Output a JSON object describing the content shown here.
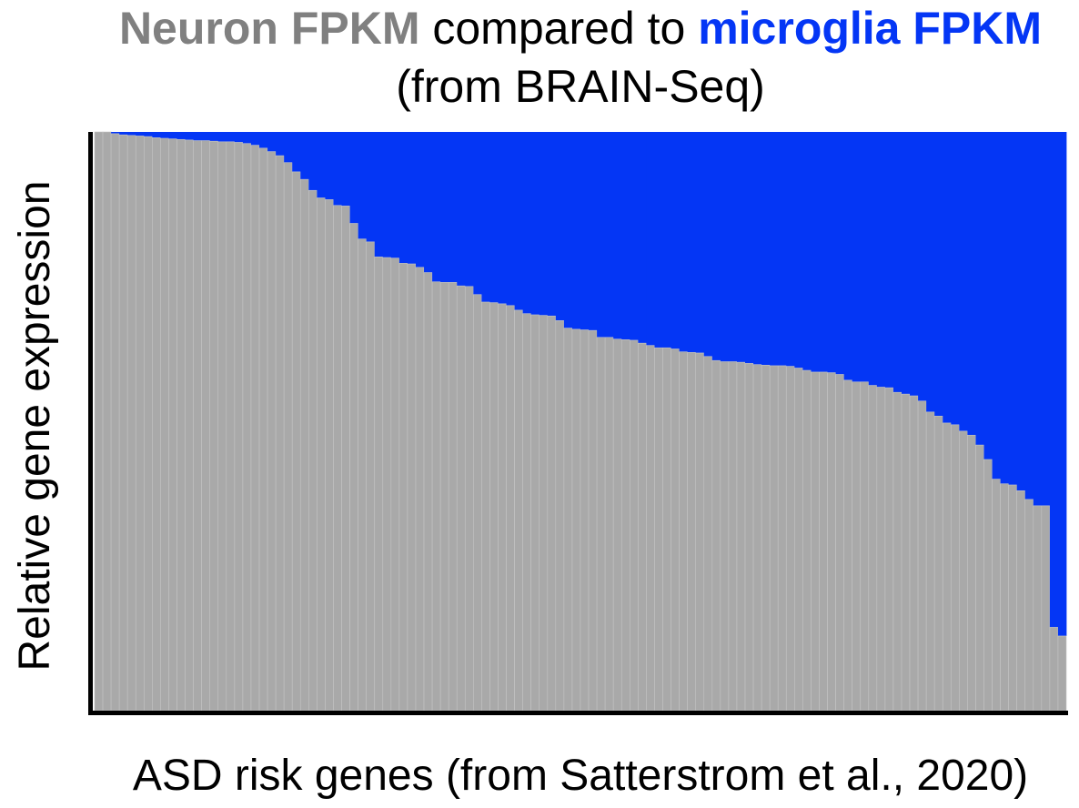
{
  "chart_data": {
    "type": "bar",
    "stacked": true,
    "normalized": true,
    "title": {
      "part1": "Neuron FPKM",
      "part2": " compared to ",
      "part3": "microglia FPKM",
      "line2": "(from BRAIN-Seq)"
    },
    "xlabel": "ASD risk genes (from Satterstrom et al., 2020)",
    "ylabel": "Relative gene expression",
    "ylim": [
      0,
      1
    ],
    "grid": false,
    "legend": "none",
    "colors": {
      "neuron": "#a9a9a9",
      "microglia": "#0436f5",
      "title_neuron": "#808080",
      "title_microglia": "#0436f5",
      "axis": "#000000"
    },
    "series": [
      {
        "key": "neuron",
        "values": [
          1.0,
          1.0,
          0.997,
          0.995,
          0.994,
          0.993,
          0.992,
          0.99,
          0.989,
          0.988,
          0.987,
          0.986,
          0.985,
          0.985,
          0.984,
          0.983,
          0.983,
          0.982,
          0.98,
          0.977,
          0.972,
          0.966,
          0.959,
          0.947,
          0.931,
          0.918,
          0.899,
          0.886,
          0.883,
          0.873,
          0.872,
          0.842,
          0.815,
          0.81,
          0.784,
          0.783,
          0.782,
          0.773,
          0.772,
          0.766,
          0.757,
          0.741,
          0.74,
          0.74,
          0.734,
          0.733,
          0.719,
          0.706,
          0.705,
          0.703,
          0.7,
          0.692,
          0.686,
          0.684,
          0.683,
          0.682,
          0.674,
          0.661,
          0.659,
          0.658,
          0.657,
          0.645,
          0.645,
          0.642,
          0.641,
          0.64,
          0.635,
          0.631,
          0.627,
          0.627,
          0.625,
          0.62,
          0.619,
          0.618,
          0.612,
          0.605,
          0.603,
          0.603,
          0.602,
          0.6,
          0.598,
          0.597,
          0.596,
          0.596,
          0.595,
          0.592,
          0.588,
          0.585,
          0.585,
          0.584,
          0.581,
          0.571,
          0.568,
          0.568,
          0.562,
          0.559,
          0.558,
          0.55,
          0.547,
          0.544,
          0.535,
          0.516,
          0.509,
          0.497,
          0.494,
          0.483,
          0.476,
          0.459,
          0.434,
          0.4,
          0.392,
          0.39,
          0.38,
          0.365,
          0.354,
          0.354,
          0.144,
          0.129
        ]
      },
      {
        "key": "microglia",
        "values": [
          0.0,
          0.0,
          0.003,
          0.005,
          0.006,
          0.007,
          0.008,
          0.01,
          0.011,
          0.012,
          0.013,
          0.014,
          0.015,
          0.015,
          0.016,
          0.017,
          0.017,
          0.018,
          0.02,
          0.023,
          0.028,
          0.034,
          0.041,
          0.053,
          0.069,
          0.082,
          0.101,
          0.114,
          0.117,
          0.127,
          0.128,
          0.158,
          0.185,
          0.19,
          0.216,
          0.217,
          0.218,
          0.227,
          0.228,
          0.234,
          0.243,
          0.259,
          0.26,
          0.26,
          0.266,
          0.267,
          0.281,
          0.294,
          0.295,
          0.297,
          0.3,
          0.308,
          0.314,
          0.316,
          0.317,
          0.318,
          0.326,
          0.339,
          0.341,
          0.342,
          0.343,
          0.355,
          0.355,
          0.358,
          0.359,
          0.36,
          0.365,
          0.369,
          0.373,
          0.373,
          0.375,
          0.38,
          0.381,
          0.382,
          0.388,
          0.395,
          0.397,
          0.397,
          0.398,
          0.4,
          0.402,
          0.403,
          0.404,
          0.404,
          0.405,
          0.408,
          0.412,
          0.415,
          0.415,
          0.416,
          0.419,
          0.429,
          0.432,
          0.432,
          0.438,
          0.441,
          0.442,
          0.45,
          0.453,
          0.456,
          0.465,
          0.484,
          0.491,
          0.503,
          0.506,
          0.517,
          0.524,
          0.541,
          0.566,
          0.6,
          0.608,
          0.61,
          0.62,
          0.635,
          0.646,
          0.646,
          0.856,
          0.871
        ]
      }
    ]
  }
}
